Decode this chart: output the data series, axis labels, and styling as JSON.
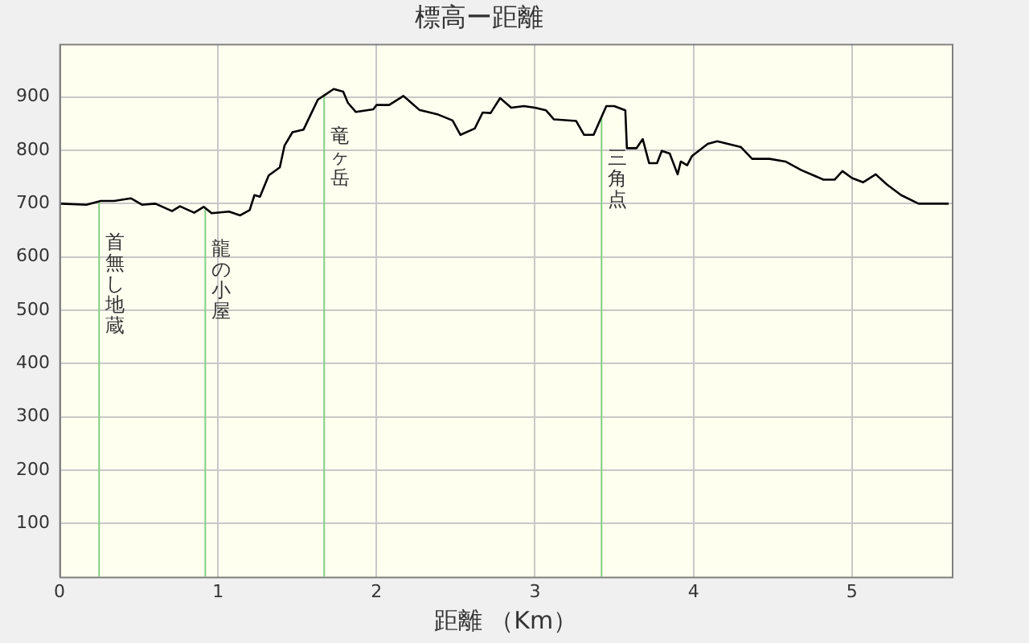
{
  "chart_data": {
    "type": "line",
    "title": "標高ー距離",
    "xlabel": "距離 （Km）",
    "x": [
      0.008,
      0.17,
      0.26,
      0.345,
      0.45,
      0.52,
      0.605,
      0.71,
      0.76,
      0.85,
      0.91,
      0.96,
      1.07,
      1.14,
      1.2,
      1.23,
      1.265,
      1.32,
      1.39,
      1.42,
      1.47,
      1.54,
      1.58,
      1.63,
      1.68,
      1.73,
      1.79,
      1.82,
      1.87,
      1.98,
      2.0,
      2.08,
      2.17,
      2.22,
      2.27,
      2.39,
      2.48,
      2.53,
      2.62,
      2.67,
      2.72,
      2.78,
      2.85,
      2.93,
      3.0,
      3.07,
      3.12,
      3.26,
      3.31,
      3.37,
      3.45,
      3.5,
      3.57,
      3.58,
      3.64,
      3.68,
      3.72,
      3.77,
      3.8,
      3.85,
      3.9,
      3.92,
      3.96,
      3.99,
      4.09,
      4.15,
      4.3,
      4.37,
      4.48,
      4.58,
      4.68,
      4.82,
      4.89,
      4.94,
      5.0,
      5.07,
      5.15,
      5.22,
      5.31,
      5.42,
      5.61
    ],
    "series": [
      {
        "color": "#000000",
        "values": [
          700,
          698,
          705,
          705,
          710,
          698,
          700,
          686,
          695,
          683,
          694,
          682,
          685,
          678,
          688,
          716,
          713,
          753,
          768,
          809,
          834,
          839,
          864,
          895,
          905,
          915,
          910,
          889,
          872,
          877,
          885,
          885,
          902,
          889,
          876,
          867,
          856,
          829,
          841,
          871,
          870,
          898,
          880,
          883,
          880,
          875,
          858,
          855,
          829,
          829,
          883,
          883,
          875,
          804,
          804,
          821,
          776,
          776,
          799,
          794,
          755,
          779,
          772,
          789,
          812,
          817,
          806,
          784,
          784,
          779,
          763,
          745,
          745,
          761,
          748,
          740,
          755,
          736,
          716,
          700,
          700
        ]
      }
    ],
    "xlim": [
      0,
      5.63
    ],
    "ylim": [
      0,
      1000
    ],
    "xticks": [
      0,
      1,
      2,
      3,
      4,
      5
    ],
    "yticks": [
      100,
      200,
      300,
      400,
      500,
      600,
      700,
      800,
      900
    ],
    "grid": true,
    "legend": false,
    "marker": "none",
    "line_style": "solid",
    "ref_lines": [
      {
        "axis": "x",
        "value": 0.25,
        "label": "首無し地蔵",
        "color": "#80d080"
      },
      {
        "axis": "x",
        "value": 0.92,
        "label": "龍の小屋",
        "color": "#80d080"
      },
      {
        "axis": "x",
        "value": 1.67,
        "label": "竜ヶ岳",
        "color": "#80d080"
      },
      {
        "axis": "x",
        "value": 3.42,
        "label": "三角点",
        "color": "#80d080"
      }
    ]
  }
}
